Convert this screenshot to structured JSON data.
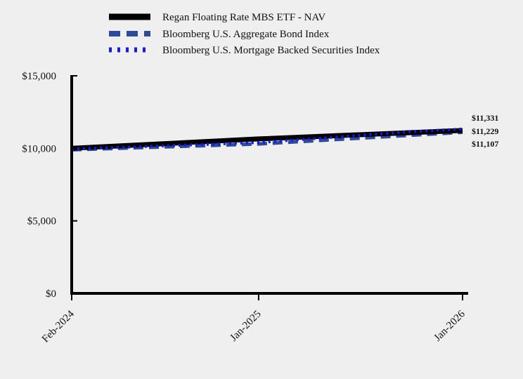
{
  "chart_data": {
    "type": "line",
    "x": [
      "Feb-2024",
      "Jan-2025",
      "Jan-2026"
    ],
    "x_numeric": [
      0,
      11,
      23
    ],
    "ylim": [
      0,
      15000
    ],
    "yticks": [
      0,
      5000,
      10000,
      15000
    ],
    "ytick_labels": [
      "$0",
      "$5,000",
      "$10,000",
      "$15,000"
    ],
    "xtick_labels": [
      "Feb-2024",
      "Jan-2025",
      "Jan-2026"
    ],
    "legend_position": "top",
    "grid": false,
    "series": [
      {
        "name": "Regan Floating Rate MBS ETF - NAV",
        "color": "#000000",
        "style": "solid",
        "points": [
          [
            0,
            10000
          ],
          [
            11,
            10650
          ],
          [
            23,
            11229
          ]
        ],
        "end_label": "$11,229"
      },
      {
        "name": "Bloomberg U.S. Aggregate Bond Index",
        "color": "#2e4a9a",
        "style": "dashed",
        "points": [
          [
            0,
            9900
          ],
          [
            11,
            10300
          ],
          [
            23,
            11107
          ]
        ],
        "end_label": "$11,107"
      },
      {
        "name": "Bloomberg U.S. Mortgage Backed Securities Index",
        "color": "#1a1ad8",
        "style": "dotted",
        "points": [
          [
            0,
            9950
          ],
          [
            11,
            10400
          ],
          [
            20,
            11150
          ],
          [
            23,
            11331
          ]
        ],
        "end_label": "$11,331"
      }
    ]
  }
}
